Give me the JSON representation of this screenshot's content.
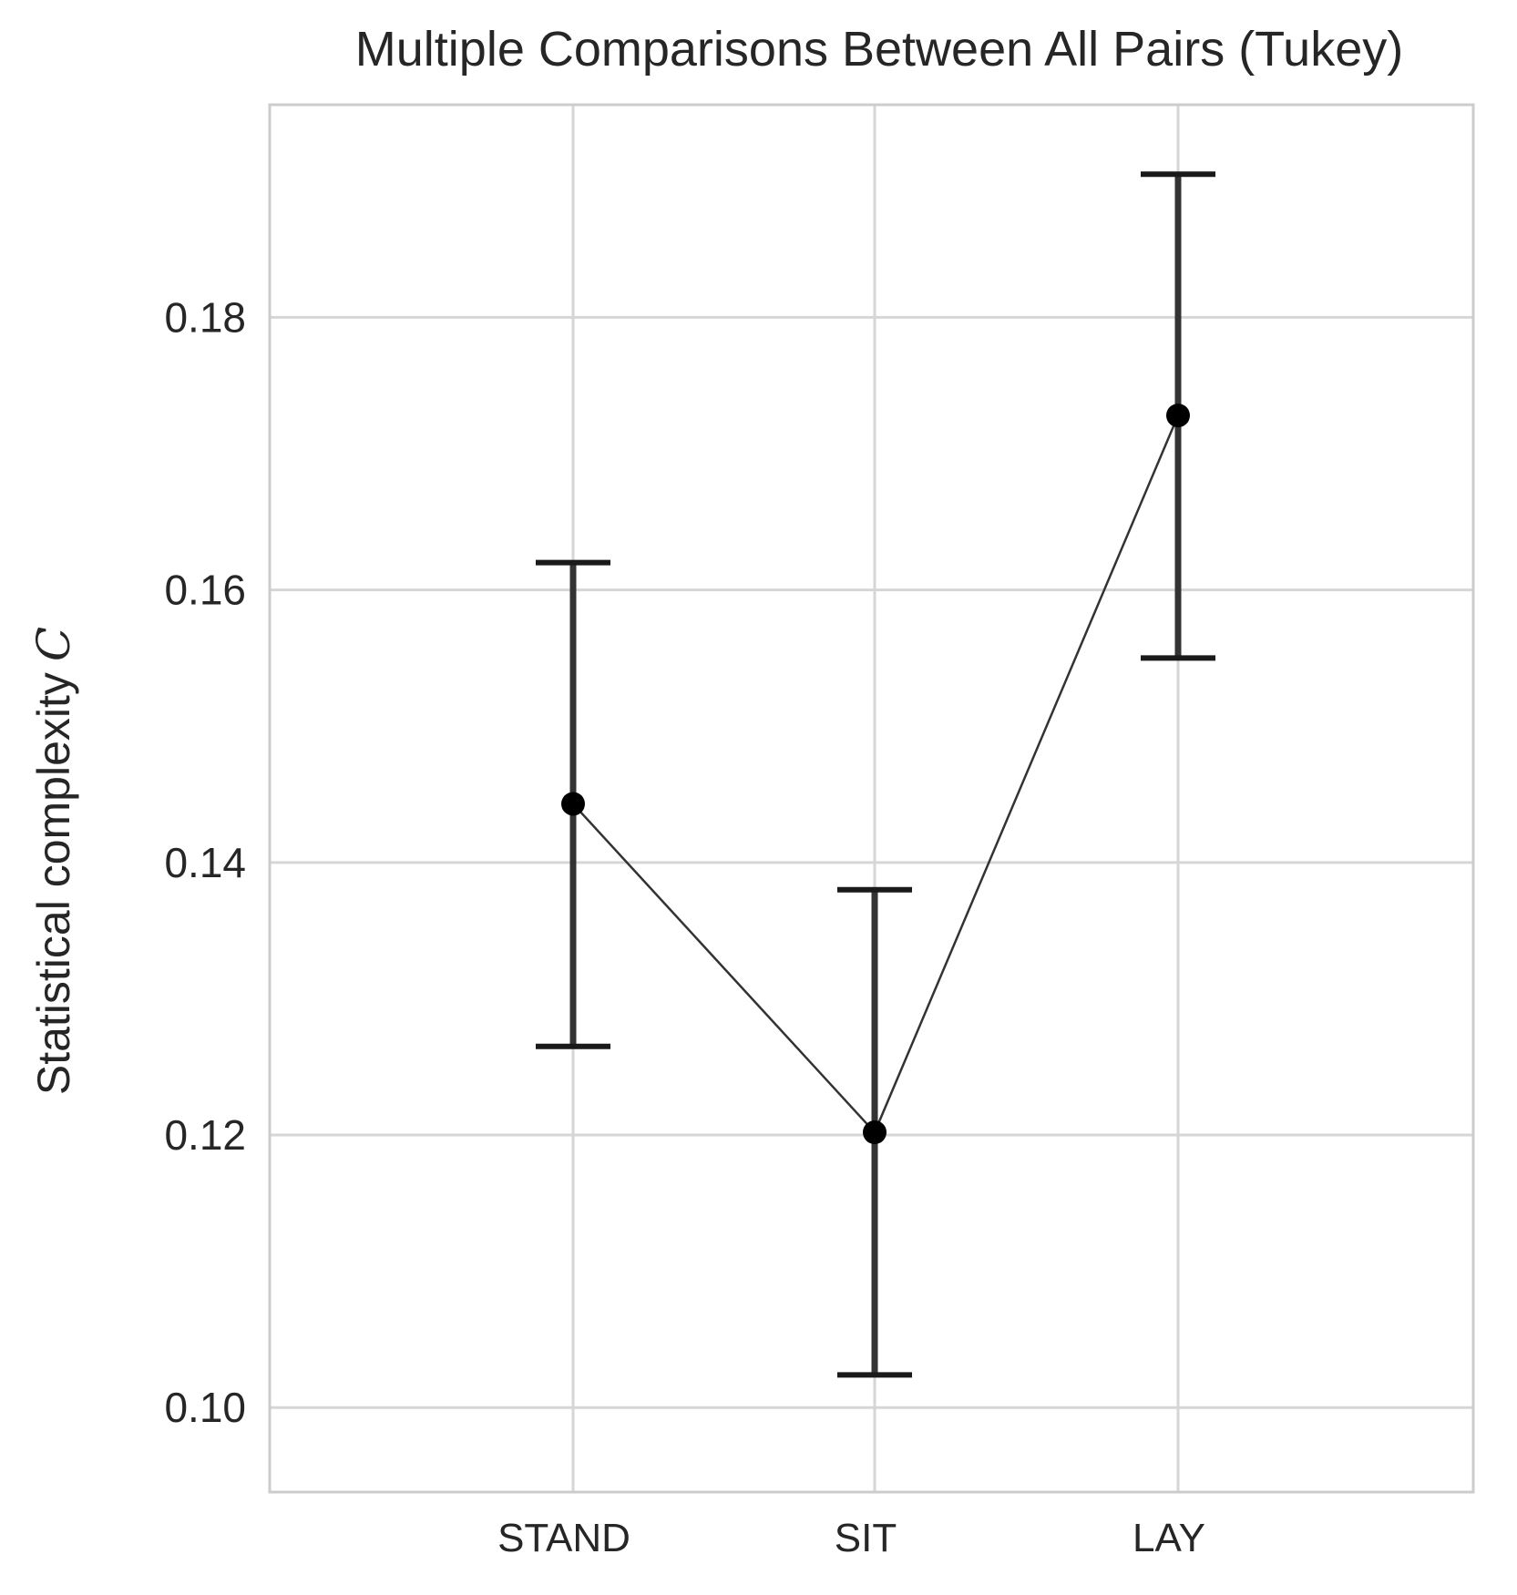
{
  "chart_data": {
    "type": "scatter",
    "title": "Multiple Comparisons Between All Pairs (Tukey)",
    "xlabel": "",
    "ylabel": "Statistical complexity",
    "ylabel_symbol": "C",
    "categories": [
      "STAND",
      "SIT",
      "LAY"
    ],
    "series": [
      {
        "values": [
          0.1443,
          0.1202,
          0.1728
        ],
        "ci_lower": [
          0.1265,
          0.1024,
          0.155
        ],
        "ci_upper": [
          0.162,
          0.138,
          0.1905
        ]
      }
    ],
    "ylim": [
      0.0938,
      0.1956
    ],
    "yticks": [
      0.1,
      0.12,
      0.14,
      0.16,
      0.18
    ],
    "ytick_labels": [
      "0.10",
      "0.12",
      "0.14",
      "0.16",
      "0.18"
    ],
    "grid": true,
    "connected": true,
    "marker_color": "#000000",
    "errorbar_color": "#333333",
    "grid_color": "#d6d6d6"
  }
}
